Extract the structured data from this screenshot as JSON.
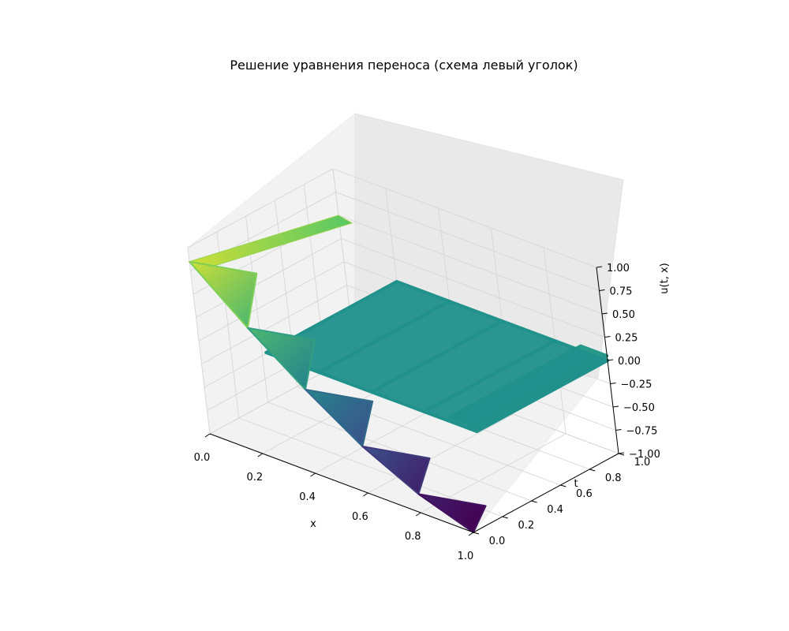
{
  "chart_data": {
    "type": "scatter",
    "projection": "3d",
    "title": "Решение уравнения переноса (схема левый уголок)",
    "xlabel": "x",
    "ylabel": "t",
    "zlabel": "u(t, x)",
    "xlim": [
      0.0,
      1.0
    ],
    "ylim": [
      0.0,
      1.0
    ],
    "zlim": [
      -1.0,
      1.0
    ],
    "x_ticks": [
      "0.0",
      "0.2",
      "0.4",
      "0.6",
      "0.8",
      "1.0"
    ],
    "y_ticks": [
      "0.0",
      "0.2",
      "0.4",
      "0.6",
      "0.8",
      "1.0"
    ],
    "z_ticks": [
      "−1.00",
      "−0.75",
      "−0.50",
      "−0.25",
      "0.00",
      "0.25",
      "0.50",
      "0.75",
      "1.00"
    ],
    "colormap": "viridis",
    "grid": true,
    "initial_condition": {
      "t": 0.0,
      "u_at_x0": 0.85,
      "u_at_x1": -1.0
    },
    "segments_at_t0": [
      {
        "x_start": 0.0,
        "x_end": 0.2,
        "u_start": 0.85,
        "u_end": 0.35
      },
      {
        "x_start": 0.2,
        "x_end": 0.4,
        "u_start": 0.35,
        "u_end": -0.1
      },
      {
        "x_start": 0.4,
        "x_end": 0.6,
        "u_start": -0.1,
        "u_end": -0.5
      },
      {
        "x_start": 0.6,
        "x_end": 0.8,
        "u_start": -0.5,
        "u_end": -0.8
      },
      {
        "x_start": 0.8,
        "x_end": 1.0,
        "u_start": -0.8,
        "u_end": -1.0
      }
    ],
    "boundary_ribbon": {
      "x": 0.0,
      "t_start": 0.0,
      "t_end": 1.0,
      "u_start": 0.85,
      "u_end": 0.5
    },
    "plateau_ribbons": [
      {
        "x_start": 0.2,
        "x_end": 0.4,
        "t_start": 0.1,
        "t_end": 1.0,
        "u": 0.0
      },
      {
        "x_start": 0.4,
        "x_end": 0.6,
        "t_start": 0.1,
        "t_end": 1.0,
        "u": 0.0
      },
      {
        "x_start": 0.6,
        "x_end": 0.8,
        "t_start": 0.1,
        "t_end": 1.0,
        "u": 0.0
      },
      {
        "x_start": 0.8,
        "x_end": 1.0,
        "t_start": 0.1,
        "t_end": 1.0,
        "u": 0.0
      },
      {
        "x_start": 0.9,
        "x_end": 1.0,
        "t_start": 0.1,
        "t_end": 1.0,
        "u": 0.05
      },
      {
        "x_start": 0.97,
        "x_end": 1.0,
        "t_start": 0.1,
        "t_end": 1.0,
        "u": 0.0
      }
    ]
  }
}
